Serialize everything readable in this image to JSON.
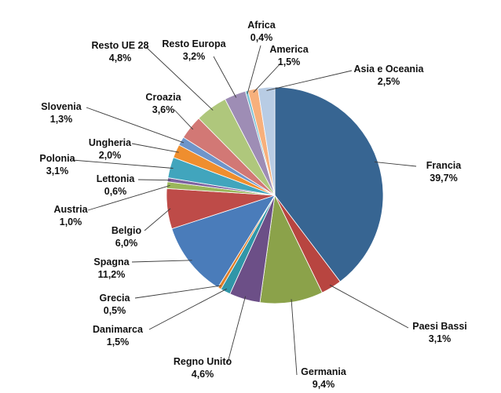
{
  "chart_data": {
    "type": "pie",
    "title": "",
    "start_angle_deg": 0,
    "direction": "clockwise",
    "slices": [
      {
        "name": "Francia",
        "value": 39.7,
        "label": "39,7%",
        "color": "#376592"
      },
      {
        "name": "Paesi Bassi",
        "value": 3.1,
        "label": "3,1%",
        "color": "#B84540"
      },
      {
        "name": "Germania",
        "value": 9.4,
        "label": "9,4%",
        "color": "#8BA24A"
      },
      {
        "name": "Regno Unito",
        "value": 4.6,
        "label": "4,6%",
        "color": "#6C4F87"
      },
      {
        "name": "Danimarca",
        "value": 1.5,
        "label": "1,5%",
        "color": "#3196A8"
      },
      {
        "name": "Grecia",
        "value": 0.5,
        "label": "0,5%",
        "color": "#E07F2A"
      },
      {
        "name": "Spagna",
        "value": 11.2,
        "label": "11,2%",
        "color": "#4A7CBA"
      },
      {
        "name": "Belgio",
        "value": 6.0,
        "label": "6,0%",
        "color": "#BE4B48"
      },
      {
        "name": "Austria",
        "value": 1.0,
        "label": "1,0%",
        "color": "#9AB65A"
      },
      {
        "name": "Lettonia",
        "value": 0.6,
        "label": "0,6%",
        "color": "#7E62A1"
      },
      {
        "name": "Polonia",
        "value": 3.1,
        "label": "3,1%",
        "color": "#41A5BD"
      },
      {
        "name": "Ungheria",
        "value": 2.0,
        "label": "2,0%",
        "color": "#EF8E2E"
      },
      {
        "name": "Slovenia",
        "value": 1.3,
        "label": "1,3%",
        "color": "#6E95CA"
      },
      {
        "name": "Croazia",
        "value": 3.6,
        "label": "3,6%",
        "color": "#D27875"
      },
      {
        "name": "Resto UE 28",
        "value": 4.8,
        "label": "4,8%",
        "color": "#AFC77C"
      },
      {
        "name": "Resto Europa",
        "value": 3.2,
        "label": "3,2%",
        "color": "#9E8DB5"
      },
      {
        "name": "Africa",
        "value": 0.4,
        "label": "0,4%",
        "color": "#7CC1D4"
      },
      {
        "name": "America",
        "value": 1.5,
        "label": "1,5%",
        "color": "#F7B07C"
      },
      {
        "name": "Asia e Oceania",
        "value": 2.5,
        "label": "2,5%",
        "color": "#B8CCE4"
      }
    ]
  }
}
